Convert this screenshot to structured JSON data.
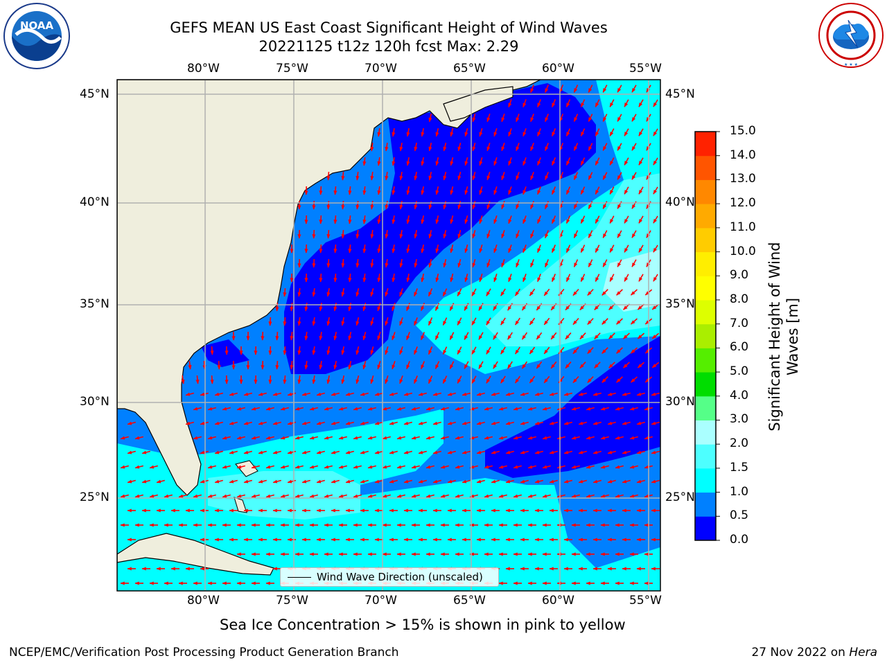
{
  "title": {
    "line1": "GEFS MEAN US East Coast Significant Height of Wind Waves",
    "line2": "20221125 t12z 120h fcst   Max: 2.29"
  },
  "logos": {
    "noaa": "NOAA",
    "noaa_ring": "NATIONAL OCEANIC AND ATMOSPHERIC ADMINISTRATION · U.S. DEPARTMENT OF COMMERCE",
    "nws_ring": "NATIONAL WEATHER SERVICE"
  },
  "map": {
    "lon_labels": [
      "80°W",
      "75°W",
      "70°W",
      "65°W",
      "60°W",
      "55°W"
    ],
    "lat_labels": [
      "45°N",
      "40°N",
      "35°N",
      "30°N",
      "25°N"
    ],
    "legend_label": "Wind Wave Direction (unscaled)"
  },
  "colorbar": {
    "title_line1": "Significant Height of Wind",
    "title_line2": "Waves [m]",
    "ticks": [
      "0.0",
      "0.5",
      "1.0",
      "1.5",
      "2.0",
      "3.0",
      "4.0",
      "5.0",
      "6.0",
      "7.0",
      "8.0",
      "9.0",
      "10.0",
      "11.0",
      "12.0",
      "13.0",
      "14.0",
      "15.0"
    ],
    "colors": [
      "#0000ff",
      "#0080ff",
      "#00ffff",
      "#4dffff",
      "#aaffff",
      "#55ff88",
      "#00dd00",
      "#55ee00",
      "#aaee00",
      "#ddff00",
      "#ffff00",
      "#ffee00",
      "#ffcc00",
      "#ffaa00",
      "#ff8800",
      "#ff5500",
      "#ff2200"
    ]
  },
  "subtitle": "Sea Ice Concentration > 15% is shown in pink to yellow",
  "footer": {
    "left": "NCEP/EMC/Verification Post Processing Product Generation Branch",
    "right_date": "27 Nov 2022 on ",
    "right_host": "Hera"
  },
  "colors": {
    "land": "#efeedd",
    "wave_0_05": "#0000ff",
    "wave_05_1": "#0080ff",
    "wave_1_15": "#00ffff",
    "wave_15_2": "#4dffff",
    "wave_2_3": "#aaffff",
    "arrow": "#ff0000",
    "grid": "#b0b0b0"
  }
}
